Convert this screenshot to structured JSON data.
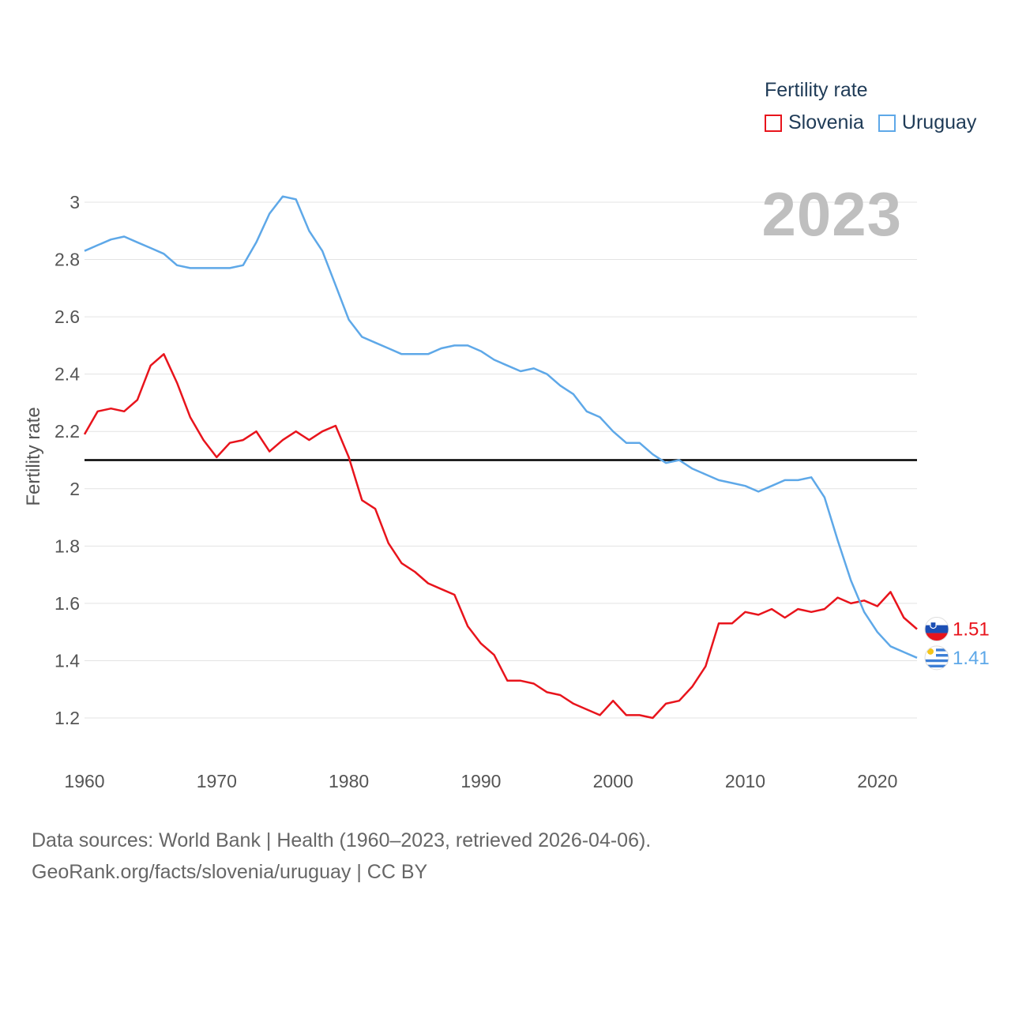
{
  "legend": {
    "title": "Fertility rate",
    "items": [
      {
        "label": "Slovenia",
        "color": "#e8141c"
      },
      {
        "label": "Uruguay",
        "color": "#5ea8e8"
      }
    ]
  },
  "year_label": "2023",
  "footer": {
    "line1": "Data sources: World Bank | Health (1960–2023, retrieved 2026-04-06).",
    "line2": "GeoRank.org/facts/slovenia/uruguay | CC BY"
  },
  "chart_data": {
    "type": "line",
    "title": "Fertility rate",
    "xlabel": "",
    "ylabel": "Fertility rate",
    "xlim": [
      1960,
      2023
    ],
    "ylim": [
      1.1,
      3.05
    ],
    "x_ticks": [
      1960,
      1970,
      1980,
      1990,
      2000,
      2010,
      2020
    ],
    "y_ticks": [
      1.2,
      1.4,
      1.6,
      1.8,
      2.0,
      2.2,
      2.4,
      2.6,
      2.8,
      3.0
    ],
    "y_tick_labels": [
      "1.2",
      "1.4",
      "1.6",
      "1.8",
      "2",
      "2.2",
      "2.4",
      "2.6",
      "2.8",
      "3"
    ],
    "reference_line": 2.1,
    "x": [
      1960,
      1961,
      1962,
      1963,
      1964,
      1965,
      1966,
      1967,
      1968,
      1969,
      1970,
      1971,
      1972,
      1973,
      1974,
      1975,
      1976,
      1977,
      1978,
      1979,
      1980,
      1981,
      1982,
      1983,
      1984,
      1985,
      1986,
      1987,
      1988,
      1989,
      1990,
      1991,
      1992,
      1993,
      1994,
      1995,
      1996,
      1997,
      1998,
      1999,
      2000,
      2001,
      2002,
      2003,
      2004,
      2005,
      2006,
      2007,
      2008,
      2009,
      2010,
      2011,
      2012,
      2013,
      2014,
      2015,
      2016,
      2017,
      2018,
      2019,
      2020,
      2021,
      2022,
      2023
    ],
    "series": [
      {
        "name": "Slovenia",
        "color": "#e8141c",
        "end_label": "1.51",
        "values": [
          2.19,
          2.27,
          2.28,
          2.27,
          2.31,
          2.43,
          2.47,
          2.37,
          2.25,
          2.17,
          2.11,
          2.16,
          2.17,
          2.2,
          2.13,
          2.17,
          2.2,
          2.17,
          2.2,
          2.22,
          2.11,
          1.96,
          1.93,
          1.81,
          1.74,
          1.71,
          1.67,
          1.65,
          1.63,
          1.52,
          1.46,
          1.42,
          1.33,
          1.33,
          1.32,
          1.29,
          1.28,
          1.25,
          1.23,
          1.21,
          1.26,
          1.21,
          1.21,
          1.2,
          1.25,
          1.26,
          1.31,
          1.38,
          1.53,
          1.53,
          1.57,
          1.56,
          1.58,
          1.55,
          1.58,
          1.57,
          1.58,
          1.62,
          1.6,
          1.61,
          1.59,
          1.64,
          1.55,
          1.51
        ]
      },
      {
        "name": "Uruguay",
        "color": "#5ea8e8",
        "end_label": "1.41",
        "values": [
          2.83,
          2.85,
          2.87,
          2.88,
          2.86,
          2.84,
          2.82,
          2.78,
          2.77,
          2.77,
          2.77,
          2.77,
          2.78,
          2.86,
          2.96,
          3.02,
          3.01,
          2.9,
          2.83,
          2.71,
          2.59,
          2.53,
          2.51,
          2.49,
          2.47,
          2.47,
          2.47,
          2.49,
          2.5,
          2.5,
          2.48,
          2.45,
          2.43,
          2.41,
          2.42,
          2.4,
          2.36,
          2.33,
          2.27,
          2.25,
          2.2,
          2.16,
          2.16,
          2.12,
          2.09,
          2.1,
          2.07,
          2.05,
          2.03,
          2.02,
          2.01,
          1.99,
          2.01,
          2.03,
          2.03,
          2.04,
          1.97,
          1.82,
          1.68,
          1.57,
          1.5,
          1.45,
          1.43,
          1.41
        ]
      }
    ]
  }
}
